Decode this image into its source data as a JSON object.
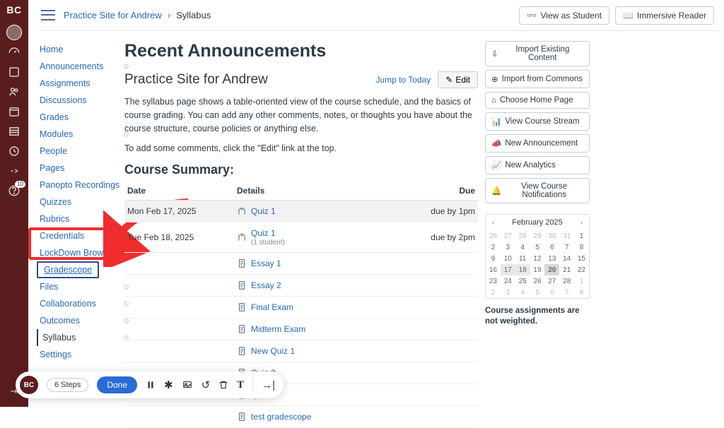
{
  "colors": {
    "brand": "#5a1d1d",
    "link": "#2769b5",
    "highlight": "#ef2d2d"
  },
  "gnav": {
    "logo": "BC",
    "badge": "10"
  },
  "breadcrumb": {
    "course": "Practice Site for Andrew",
    "page": "Syllabus"
  },
  "topbar": {
    "view_as_student": "View as Student",
    "immersive_reader": "Immersive Reader"
  },
  "coursenav": {
    "items": [
      {
        "label": "Home"
      },
      {
        "label": "Announcements",
        "hidden": true
      },
      {
        "label": "Assignments"
      },
      {
        "label": "Discussions"
      },
      {
        "label": "Grades"
      },
      {
        "label": "Modules",
        "hidden": true
      },
      {
        "label": "People"
      },
      {
        "label": "Pages"
      },
      {
        "label": "Panopto Recordings"
      },
      {
        "label": "Quizzes"
      },
      {
        "label": "Rubrics"
      },
      {
        "label": "Credentials"
      },
      {
        "label": "LockDown Browser"
      },
      {
        "label": "Gradescope",
        "boxed": true
      },
      {
        "label": "Files",
        "hidden": true
      },
      {
        "label": "Collaborations",
        "hidden": true
      },
      {
        "label": "Outcomes",
        "hidden": true
      },
      {
        "label": "Syllabus",
        "active": true,
        "hidden": true
      },
      {
        "label": "Settings"
      }
    ]
  },
  "main": {
    "heading": "Recent Announcements",
    "subheading": "Practice Site for Andrew",
    "jump": "Jump to Today",
    "edit": "Edit",
    "para1": "The syllabus page shows a table-oriented view of the course schedule, and the basics of course grading. You can add any other comments, notes, or thoughts you have about the course structure, course policies or anything else.",
    "para2": "To add some comments, click the \"Edit\" link at the top.",
    "course_summary": "Course Summary:",
    "cols": {
      "date": "Date",
      "details": "Details",
      "due": "Due"
    },
    "rows": [
      {
        "date": "Mon Feb 17, 2025",
        "title": "Quiz 1",
        "icon": "quiz",
        "due": "due by 1pm",
        "shaded": true
      },
      {
        "date": "Tue Feb 18, 2025",
        "title": "Quiz 1",
        "sub": "(1 student)",
        "icon": "quiz",
        "due": "due by 2pm"
      },
      {
        "title": "Essay 1",
        "icon": "assign"
      },
      {
        "title": "Essay 2",
        "icon": "assign"
      },
      {
        "title": "Final Exam",
        "icon": "assign"
      },
      {
        "title": "Midterm Exam",
        "icon": "assign"
      },
      {
        "title": "New Quiz 1",
        "icon": "assign"
      },
      {
        "title": "Quiz 2",
        "icon": "assign"
      },
      {
        "title": "Quiz 3",
        "icon": "assign",
        "faded": true
      },
      {
        "title": "test gradescope",
        "icon": "assign"
      }
    ]
  },
  "rsb": {
    "buttons": {
      "import_existing": "Import Existing Content",
      "import_commons": "Import from Commons",
      "choose_home": "Choose Home Page",
      "course_stream": "View Course Stream",
      "new_announcement": "New Announcement",
      "new_analytics": "New Analytics",
      "notifications": "View Course Notifications"
    },
    "calendar": {
      "title": "February 2025",
      "cells": [
        {
          "n": 26,
          "o": true
        },
        {
          "n": 27,
          "o": true
        },
        {
          "n": 28,
          "o": true
        },
        {
          "n": 29,
          "o": true
        },
        {
          "n": 30,
          "o": true
        },
        {
          "n": 31,
          "o": true
        },
        {
          "n": 1
        },
        {
          "n": 2
        },
        {
          "n": 3
        },
        {
          "n": 4
        },
        {
          "n": 5
        },
        {
          "n": 6
        },
        {
          "n": 7
        },
        {
          "n": 8
        },
        {
          "n": 9
        },
        {
          "n": 10
        },
        {
          "n": 11
        },
        {
          "n": 12
        },
        {
          "n": 13
        },
        {
          "n": 14
        },
        {
          "n": 15
        },
        {
          "n": 16
        },
        {
          "n": 17,
          "hl": true
        },
        {
          "n": 18,
          "hl": true
        },
        {
          "n": 19
        },
        {
          "n": 20,
          "today": true
        },
        {
          "n": 21
        },
        {
          "n": 22
        },
        {
          "n": 23
        },
        {
          "n": 24
        },
        {
          "n": 25
        },
        {
          "n": 26
        },
        {
          "n": 27
        },
        {
          "n": 28
        },
        {
          "n": 1,
          "o": true
        },
        {
          "n": 2,
          "o": true
        },
        {
          "n": 3,
          "o": true
        },
        {
          "n": 4,
          "o": true
        },
        {
          "n": 5,
          "o": true
        },
        {
          "n": 6,
          "o": true
        },
        {
          "n": 7,
          "o": true
        },
        {
          "n": 8,
          "o": true
        }
      ]
    },
    "weight_note": "Course assignments are not weighted."
  },
  "floatbar": {
    "steps": "6 Steps",
    "done": "Done"
  }
}
